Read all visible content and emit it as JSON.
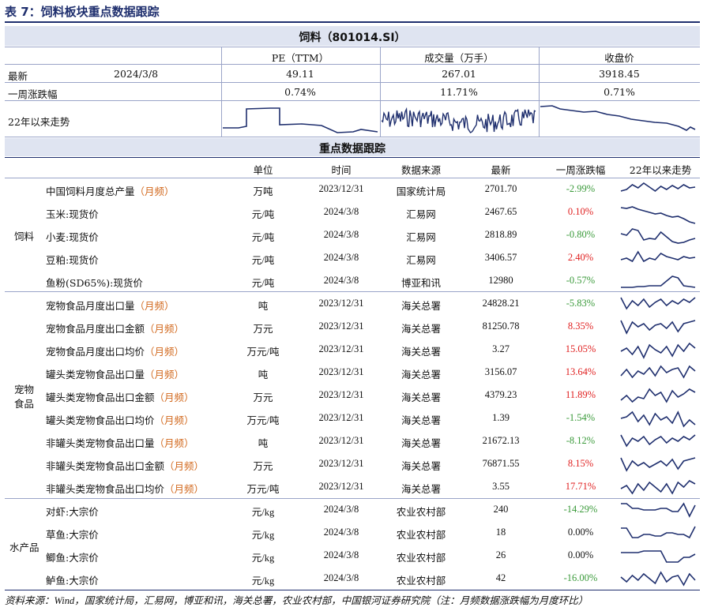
{
  "title": "表 7：饲料板块重点数据跟踪",
  "index": {
    "name": "饲料（801014.SI）",
    "col_pe": "PE（TTM）",
    "col_vol": "成交量（万手）",
    "col_close": "收盘价",
    "row_latest_label": "最新",
    "row_latest_date": "2024/3/8",
    "pe_latest": "49.11",
    "vol_latest": "267.01",
    "close_latest": "3918.45",
    "row_week_label": "一周涨跌幅",
    "pe_week": "0.74%",
    "vol_week": "11.71%",
    "close_week": "0.71%",
    "row_trend_label": "22年以来走势"
  },
  "section_title": "重点数据跟踪",
  "columns": [
    "单位",
    "时间",
    "数据来源",
    "最新",
    "一周涨跌幅",
    "22年以来走势"
  ],
  "groups": [
    {
      "name_l1": "饲料",
      "name_l2": ""
    },
    {
      "name_l1": "宠物",
      "name_l2": "食品"
    },
    {
      "name_l1": "水产品",
      "name_l2": ""
    }
  ],
  "rows": [
    {
      "name": "中国饲料月度总产量",
      "freq": "（月频）",
      "unit": "万吨",
      "time": "2023/12/31",
      "src": "国家统计局",
      "latest": "2701.70",
      "chg": "-2.99%",
      "dir": "down"
    },
    {
      "name": "玉米:现货价",
      "freq": "",
      "unit": "元/吨",
      "time": "2024/3/8",
      "src": "汇易网",
      "latest": "2467.65",
      "chg": "0.10%",
      "dir": "up"
    },
    {
      "name": "小麦:现货价",
      "freq": "",
      "unit": "元/吨",
      "time": "2024/3/8",
      "src": "汇易网",
      "latest": "2818.89",
      "chg": "-0.80%",
      "dir": "down"
    },
    {
      "name": "豆粕:现货价",
      "freq": "",
      "unit": "元/吨",
      "time": "2024/3/8",
      "src": "汇易网",
      "latest": "3406.57",
      "chg": "2.40%",
      "dir": "up"
    },
    {
      "name": "鱼粉(SD65%):现货价",
      "freq": "",
      "unit": "元/吨",
      "time": "2024/3/8",
      "src": "博亚和讯",
      "latest": "12980",
      "chg": "-0.57%",
      "dir": "down"
    },
    {
      "name": "宠物食品月度出口量",
      "freq": "（月频）",
      "unit": "吨",
      "time": "2023/12/31",
      "src": "海关总署",
      "latest": "24828.21",
      "chg": "-5.83%",
      "dir": "down"
    },
    {
      "name": "宠物食品月度出口金额",
      "freq": "（月频）",
      "unit": "万元",
      "time": "2023/12/31",
      "src": "海关总署",
      "latest": "81250.78",
      "chg": "8.35%",
      "dir": "up"
    },
    {
      "name": "宠物食品月度出口均价",
      "freq": "（月频）",
      "unit": "万元/吨",
      "time": "2023/12/31",
      "src": "海关总署",
      "latest": "3.27",
      "chg": "15.05%",
      "dir": "up"
    },
    {
      "name": "罐头类宠物食品出口量",
      "freq": "（月频）",
      "unit": "吨",
      "time": "2023/12/31",
      "src": "海关总署",
      "latest": "3156.07",
      "chg": "13.64%",
      "dir": "up"
    },
    {
      "name": "罐头类宠物食品出口金额",
      "freq": "（月频）",
      "unit": "万元",
      "time": "2023/12/31",
      "src": "海关总署",
      "latest": "4379.23",
      "chg": "11.89%",
      "dir": "up"
    },
    {
      "name": "罐头类宠物食品出口均价",
      "freq": "（月频）",
      "unit": "万元/吨",
      "time": "2023/12/31",
      "src": "海关总署",
      "latest": "1.39",
      "chg": "-1.54%",
      "dir": "down"
    },
    {
      "name": "非罐头类宠物食品出口量",
      "freq": "（月频）",
      "unit": "吨",
      "time": "2023/12/31",
      "src": "海关总署",
      "latest": "21672.13",
      "chg": "-8.12%",
      "dir": "down"
    },
    {
      "name": "非罐头类宠物食品出口金额",
      "freq": "（月频）",
      "unit": "万元",
      "time": "2023/12/31",
      "src": "海关总署",
      "latest": "76871.55",
      "chg": "8.15%",
      "dir": "up"
    },
    {
      "name": "非罐头类宠物食品出口均价",
      "freq": "（月频）",
      "unit": "万元/吨",
      "time": "2023/12/31",
      "src": "海关总署",
      "latest": "3.55",
      "chg": "17.71%",
      "dir": "up"
    },
    {
      "name": "对虾:大宗价",
      "freq": "",
      "unit": "元/kg",
      "time": "2024/3/8",
      "src": "农业农村部",
      "latest": "240",
      "chg": "-14.29%",
      "dir": "down"
    },
    {
      "name": "草鱼:大宗价",
      "freq": "",
      "unit": "元/kg",
      "time": "2024/3/8",
      "src": "农业农村部",
      "latest": "18",
      "chg": "0.00%",
      "dir": "flat"
    },
    {
      "name": "鲫鱼:大宗价",
      "freq": "",
      "unit": "元/kg",
      "time": "2024/3/8",
      "src": "农业农村部",
      "latest": "26",
      "chg": "0.00%",
      "dir": "flat"
    },
    {
      "name": "鲈鱼:大宗价",
      "freq": "",
      "unit": "元/kg",
      "time": "2024/3/8",
      "src": "农业农村部",
      "latest": "42",
      "chg": "-16.00%",
      "dir": "down"
    }
  ],
  "colors": {
    "navy": "#1f2f6e",
    "band": "#dfe4f1",
    "up": "#e02020",
    "down": "#3a9a3a",
    "freq": "#d2691e"
  },
  "source": "资料来源：Wind，国家统计局，汇易网，博亚和讯，海关总署，农业农村部，中国银河证券研究院（注：月频数据涨跌幅为月度环比）"
}
